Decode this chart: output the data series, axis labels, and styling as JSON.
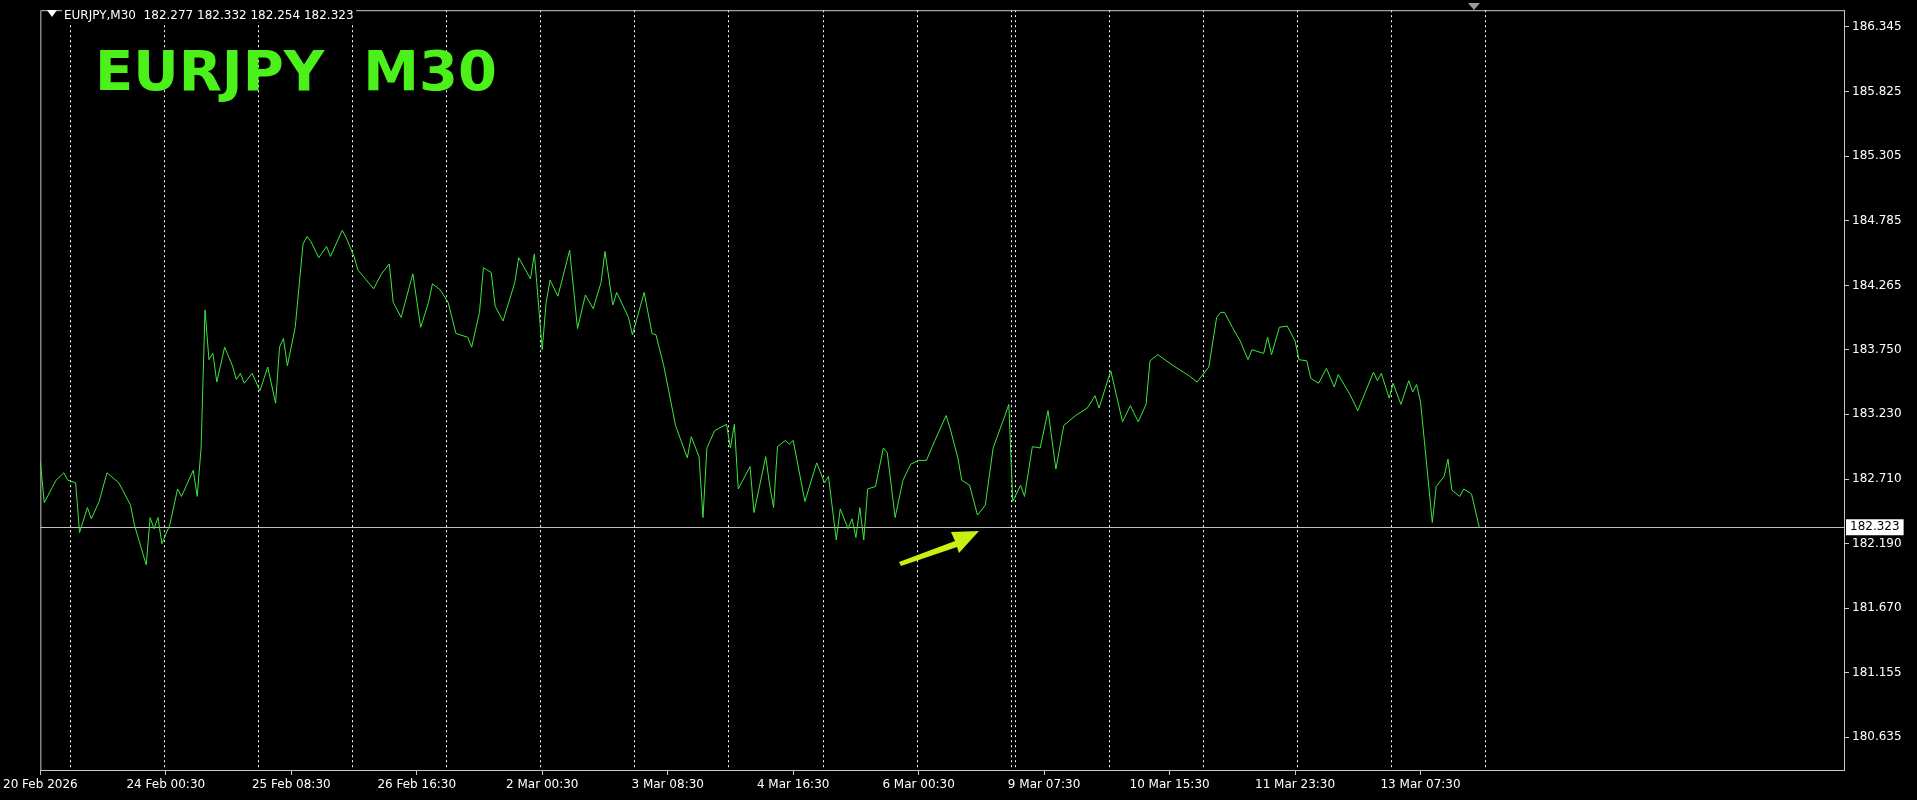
{
  "chart_data": {
    "type": "line",
    "title": "EURJPY  M30",
    "subtitle": "EURJPY,M30  182.277 182.332 182.254 182.323",
    "legend": false,
    "marker": "none",
    "line_style": "solid",
    "categories": [
      "20 Feb 2026",
      null,
      null,
      null,
      null,
      null,
      null,
      null,
      null,
      null,
      null,
      null,
      null,
      null,
      null,
      null,
      null,
      null,
      null,
      null,
      null,
      null,
      null,
      null,
      null,
      null,
      null,
      null,
      null,
      null,
      null,
      null,
      "24 Feb 00:30",
      null,
      null,
      null,
      null,
      null,
      null,
      null,
      null,
      null,
      null,
      null,
      null,
      null,
      null,
      null,
      null,
      null,
      null,
      null,
      null,
      null,
      null,
      null,
      null,
      null,
      null,
      null,
      null,
      null,
      null,
      null,
      "25 Feb 08:30",
      null,
      null,
      null,
      null,
      null,
      null,
      null,
      null,
      null,
      null,
      null,
      null,
      null,
      null,
      null,
      null,
      null,
      null,
      null,
      null,
      null,
      null,
      null,
      null,
      null,
      null,
      null,
      null,
      null,
      null,
      null,
      "26 Feb 16:30",
      null,
      null,
      null,
      null,
      null,
      null,
      null,
      null,
      null,
      null,
      null,
      null,
      null,
      null,
      null,
      null,
      null,
      null,
      null,
      null,
      null,
      null,
      null,
      null,
      null,
      null,
      null,
      null,
      null,
      null,
      null,
      "2 Mar 00:30",
      null,
      null,
      null,
      null,
      null,
      null,
      null,
      null,
      null,
      null,
      null,
      null,
      null,
      null,
      null,
      null,
      null,
      null,
      null,
      null,
      null,
      null,
      null,
      null,
      null,
      null,
      null,
      null,
      null,
      null,
      null,
      "3 Mar 08:30",
      null,
      null,
      null,
      null,
      null,
      null,
      null,
      null,
      null,
      null,
      null,
      null,
      null,
      null,
      null,
      null,
      null,
      null,
      null,
      null,
      null,
      null,
      null,
      null,
      null,
      null,
      null,
      null,
      null,
      null,
      null,
      "4 Mar 16:30",
      null,
      null,
      null,
      null,
      null,
      null,
      null,
      null,
      null,
      null,
      null,
      null,
      null,
      null,
      null,
      null,
      null,
      null,
      null,
      null,
      null,
      null,
      null,
      null,
      null,
      null,
      null,
      null,
      null,
      null,
      null,
      "6 Mar 00:30",
      null,
      null,
      null,
      null,
      null,
      null,
      null,
      null,
      null,
      null,
      null,
      null,
      null,
      null,
      null,
      null,
      null,
      null,
      null,
      null,
      null,
      null,
      null,
      null,
      null,
      null,
      null,
      null,
      null,
      null,
      null,
      "9 Mar 07:30",
      null,
      null,
      null,
      null,
      null,
      null,
      null,
      null,
      null,
      null,
      null,
      null,
      null,
      null,
      null,
      null,
      null,
      null,
      null,
      null,
      null,
      null,
      null,
      null,
      null,
      null,
      null,
      null,
      null,
      null,
      null,
      "10 Mar 15:30",
      null,
      null,
      null,
      null,
      null,
      null,
      null,
      null,
      null,
      null,
      null,
      null,
      null,
      null,
      null,
      null,
      null,
      null,
      null,
      null,
      null,
      null,
      null,
      null,
      null,
      null,
      null,
      null,
      null,
      null,
      null,
      "11 Mar 23:30",
      null,
      null,
      null,
      null,
      null,
      null,
      null,
      null,
      null,
      null,
      null,
      null,
      null,
      null,
      null,
      null,
      null,
      null,
      null,
      null,
      null,
      null,
      null,
      null,
      null,
      null,
      null,
      null,
      null,
      null,
      null,
      "13 Mar 07:30",
      null,
      null,
      null,
      null,
      null,
      null,
      null,
      null,
      null,
      null,
      null,
      null,
      null,
      null,
      null,
      null,
      null,
      null,
      null,
      null,
      null,
      null,
      null,
      null,
      null,
      null,
      null,
      null,
      null,
      null,
      null,
      null,
      null,
      null,
      null,
      null,
      null,
      null,
      null,
      null,
      null,
      null,
      null,
      null,
      null,
      null,
      null,
      null,
      null,
      null,
      null,
      null,
      null,
      null,
      null,
      null,
      null,
      null,
      null,
      null,
      null,
      null,
      null,
      null,
      null,
      null,
      null,
      null,
      null,
      null,
      null,
      null,
      null,
      null,
      null,
      null,
      null,
      null,
      null,
      null,
      null,
      null,
      null,
      null,
      null,
      null,
      null,
      null,
      null,
      null,
      null,
      null,
      null,
      null,
      null,
      null,
      null,
      null,
      null,
      null,
      null,
      null,
      null,
      null,
      null,
      null,
      null,
      null
    ],
    "ylim": [
      180.37,
      186.48
    ],
    "yticks": [
      186.345,
      185.825,
      185.305,
      184.785,
      184.265,
      {
        "value": 183.75,
        "label": "183.750"
      },
      {
        "value": 183.23,
        "label": "183.230"
      },
      {
        "value": 182.71,
        "label": "182.710"
      },
      {
        "value": 182.19,
        "label": "182.190"
      },
      {
        "value": 181.67,
        "label": "181.670"
      },
      181.155,
      180.635
    ],
    "ref_lines": [
      {
        "axis": "y",
        "value": 182.323,
        "label": "182.323",
        "color": "#c0c0c0",
        "line_style": "solid"
      }
    ],
    "series": [
      {
        "color": "#3ce63c",
        "values": [
          182.85,
          182.52,
          null,
          null,
          182.7,
          null,
          182.76,
          182.7,
          null,
          182.68,
          182.28,
          null,
          182.48,
          182.39,
          null,
          182.53,
          null,
          182.76,
          null,
          null,
          182.68,
          null,
          null,
          182.5,
          182.34,
          null,
          null,
          182.02,
          182.4,
          182.31,
          182.4,
          182.19,
          null,
          182.34,
          null,
          182.63,
          182.57,
          null,
          null,
          182.78,
          182.57,
          182.96,
          184.07,
          183.67,
          183.72,
          183.49,
          null,
          183.77,
          null,
          183.62,
          183.51,
          183.56,
          183.48,
          null,
          183.56,
          null,
          183.42,
          null,
          183.61,
          null,
          183.32,
          183.77,
          183.84,
          183.62,
          null,
          183.93,
          null,
          184.6,
          184.66,
          184.62,
          null,
          184.49,
          null,
          184.58,
          184.5,
          null,
          null,
          184.71,
          184.65,
          null,
          184.5,
          184.39,
          null,
          null,
          null,
          184.24,
          null,
          184.36,
          null,
          184.44,
          184.13,
          null,
          184.01,
          null,
          null,
          184.36,
          null,
          183.93,
          null,
          184.13,
          184.28,
          null,
          184.23,
          null,
          184.13,
          null,
          183.88,
          null,
          null,
          183.85,
          183.77,
          null,
          184.05,
          184.41,
          null,
          184.37,
          184.1,
          null,
          183.98,
          null,
          null,
          184.29,
          184.49,
          null,
          null,
          184.32,
          184.52,
          null,
          183.75,
          184.13,
          184.31,
          null,
          184.18,
          null,
          null,
          184.55,
          null,
          183.92,
          null,
          184.19,
          null,
          184.08,
          null,
          184.29,
          184.54,
          null,
          184.11,
          184.21,
          null,
          null,
          184.01,
          183.87,
          null,
          null,
          184.21,
          null,
          183.88,
          183.87,
          null,
          183.62,
          null,
          null,
          183.14,
          null,
          null,
          182.88,
          183.05,
          null,
          182.89,
          182.4,
          182.96,
          null,
          183.1,
          null,
          null,
          183.15,
          182.96,
          183.15,
          182.63,
          null,
          null,
          182.81,
          182.44,
          null,
          null,
          182.89,
          182.66,
          182.48,
          182.97,
          null,
          183.02,
          182.99,
          183.02,
          null,
          null,
          182.53,
          null,
          null,
          182.84,
          null,
          182.68,
          182.73,
          null,
          182.22,
          182.47,
          null,
          182.31,
          182.39,
          182.24,
          182.48,
          182.22,
          182.63,
          null,
          182.65,
          null,
          182.96,
          182.92,
          null,
          182.4,
          null,
          182.7,
          null,
          182.83,
          null,
          182.86,
          null,
          182.86,
          null,
          183.01,
          null,
          null,
          183.22,
          183.12,
          null,
          182.88,
          182.7,
          null,
          182.66,
          null,
          182.42,
          null,
          182.5,
          null,
          182.96,
          null,
          null,
          183.22,
          183.31,
          182.53,
          null,
          182.66,
          182.57,
          null,
          182.97,
          null,
          182.96,
          null,
          183.26,
          null,
          182.79,
          null,
          183.14,
          null,
          null,
          183.22,
          null,
          null,
          183.28,
          null,
          183.38,
          183.28,
          null,
          null,
          183.58,
          null,
          null,
          183.17,
          null,
          183.3,
          null,
          183.17,
          null,
          183.31,
          183.66,
          null,
          183.71,
          null,
          null,
          null,
          183.62,
          null,
          null,
          null,
          183.54,
          null,
          183.49,
          null,
          null,
          183.61,
          null,
          184.01,
          184.05,
          184.05,
          null,
          183.93,
          null,
          183.82,
          null,
          183.67,
          183.75,
          null,
          null,
          183.72,
          183.85,
          183.71,
          null,
          183.93,
          null,
          183.94,
          null,
          183.82,
          183.67,
          null,
          183.66,
          183.52,
          null,
          183.48,
          null,
          183.6,
          null,
          183.45,
          183.55,
          null,
          null,
          183.39,
          null,
          183.26,
          null,
          null,
          null,
          183.57,
          183.5,
          183.56,
          null,
          183.36,
          183.48,
          null,
          183.31,
          null,
          183.5,
          183.41,
          183.47,
          183.33,
          183.01,
          null,
          182.36,
          182.65,
          null,
          182.73,
          182.87,
          182.62,
          null,
          182.57,
          182.63,
          null,
          182.59,
          null,
          182.32,
          null,
          null,
          null,
          null,
          null,
          null,
          null,
          null,
          null,
          null,
          null,
          null,
          null,
          null,
          null,
          null,
          null,
          null,
          null,
          null,
          null,
          null,
          null,
          null,
          null,
          null,
          null,
          null,
          null,
          null,
          null,
          null,
          null,
          null,
          null,
          null,
          null,
          null,
          null,
          null,
          null,
          null,
          null,
          null,
          null,
          null,
          null,
          null,
          null,
          null,
          null,
          null,
          null,
          null,
          null,
          null,
          null,
          null,
          null,
          null,
          null,
          null,
          null,
          null,
          null,
          null,
          null,
          null,
          null,
          null,
          null,
          null,
          null,
          null,
          null,
          null,
          null,
          null,
          null,
          null,
          null,
          null,
          null,
          null,
          null,
          null,
          null,
          null,
          null,
          null,
          null,
          null,
          null
        ]
      }
    ]
  }
}
